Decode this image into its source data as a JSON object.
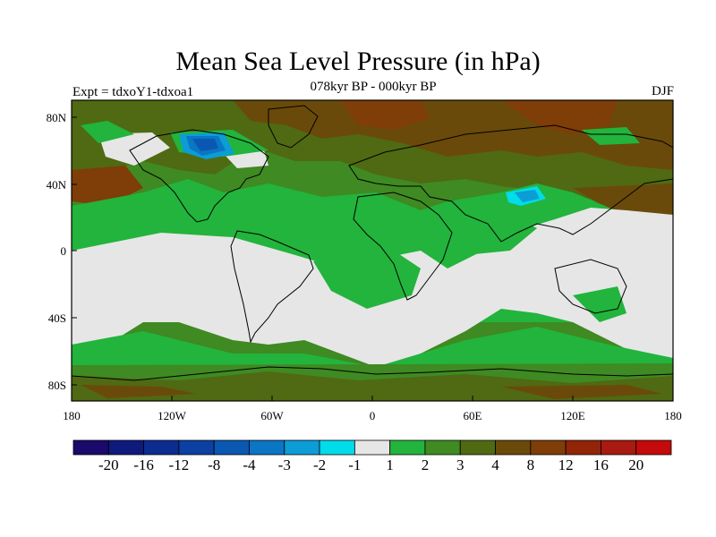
{
  "title": "Mean Sea Level Pressure (in hPa)",
  "subtitle": "078kyr BP - 000kyr BP",
  "expt": "Expt = tdxoY1-tdxoa1",
  "season": "DJF",
  "lat_labels": [
    "80N",
    "40N",
    "0",
    "40S",
    "80S"
  ],
  "lon_labels": [
    "180",
    "120W",
    "60W",
    "0",
    "60E",
    "120E",
    "180"
  ],
  "colorbar": {
    "labels": [
      "-20",
      "-16",
      "-12",
      "-8",
      "-4",
      "-3",
      "-2",
      "-1",
      "1",
      "2",
      "3",
      "4",
      "8",
      "12",
      "16",
      "20"
    ],
    "colors": [
      "#1a0a6b",
      "#0f1a7d",
      "#0c2c90",
      "#0c40a2",
      "#0a58b2",
      "#0a76c4",
      "#0c9cd6",
      "#00dcea",
      "#e6e6e6",
      "#22b43c",
      "#3f8a22",
      "#4f6a12",
      "#6a4a0a",
      "#7f3d08",
      "#922408",
      "#a91a10",
      "#c40a0a"
    ]
  },
  "map_colors": {
    "neutral": "#e6e6e6",
    "level2": "#22b43c",
    "level3": "#3f8a22",
    "level4": "#4f6a12",
    "level8": "#6a4a0a",
    "level12": "#7f3d08",
    "neg4": "#0a58b2",
    "neg3": "#0a76c4",
    "neg2": "#0c9cd6",
    "neg1": "#00dcea"
  }
}
